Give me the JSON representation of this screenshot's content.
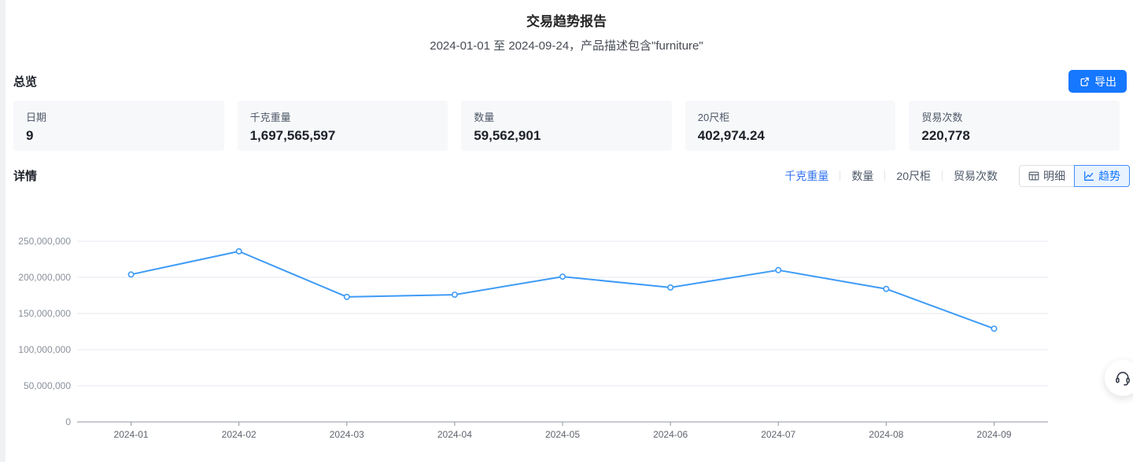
{
  "page": {
    "title": "交易趋势报告",
    "subtitle": "2024-01-01 至 2024-09-24，产品描述包含\"furniture\""
  },
  "overview": {
    "heading": "总览",
    "export_label": "导出",
    "cards": [
      {
        "label": "日期",
        "value": "9"
      },
      {
        "label": "千克重量",
        "value": "1,697,565,597"
      },
      {
        "label": "数量",
        "value": "59,562,901"
      },
      {
        "label": "20尺柜",
        "value": "402,974.24"
      },
      {
        "label": "贸易次数",
        "value": "220,778"
      }
    ]
  },
  "details": {
    "heading": "详情",
    "metric_tabs": [
      {
        "label": "千克重量",
        "active": true
      },
      {
        "label": "数量",
        "active": false
      },
      {
        "label": "20尺柜",
        "active": false
      },
      {
        "label": "贸易次数",
        "active": false
      }
    ],
    "view_toggle": [
      {
        "label": "明细",
        "icon": "table-icon",
        "active": false
      },
      {
        "label": "趋势",
        "icon": "trend-icon",
        "active": true
      }
    ]
  },
  "chart_data": {
    "type": "line",
    "title": "",
    "xlabel": "",
    "ylabel": "",
    "x": [
      "2024-01",
      "2024-02",
      "2024-03",
      "2024-04",
      "2024-05",
      "2024-06",
      "2024-07",
      "2024-08",
      "2024-09"
    ],
    "series": [
      {
        "name": "千克重量",
        "values": [
          204000000,
          236000000,
          173000000,
          176000000,
          201000000,
          186000000,
          210000000,
          184000000,
          129000000
        ]
      }
    ],
    "ylim": [
      0,
      250000000
    ],
    "y_tick_step": 50000000,
    "grid": true,
    "legend_position": "none",
    "marker": "hollow-circle"
  },
  "icons": {
    "export": "export-icon",
    "detail_view": "table-icon",
    "trend_view": "line-chart-icon",
    "support": "headset-icon"
  },
  "colors": {
    "accent": "#1677ff",
    "tab_active": "#3374f0",
    "line": "#3e9bf6",
    "card_bg": "#f7f8fa",
    "grid_line": "#e6e9f0",
    "axis_line": "#8f959e"
  }
}
